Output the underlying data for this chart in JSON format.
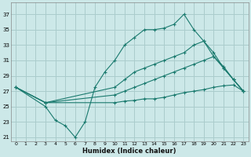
{
  "xlabel": "Humidex (Indice chaleur)",
  "bg_color": "#cce8e8",
  "grid_color": "#aacccc",
  "line_color": "#1a7a6e",
  "xlim": [
    -0.5,
    23.5
  ],
  "ylim": [
    20.5,
    38.5
  ],
  "xtick_labels": [
    "0",
    "1",
    "2",
    "3",
    "4",
    "5",
    "6",
    "7",
    "8",
    "9",
    "1011121314151617181920212223"
  ],
  "xticks": [
    0,
    1,
    2,
    3,
    4,
    5,
    6,
    7,
    8,
    9,
    10,
    11,
    12,
    13,
    14,
    15,
    16,
    17,
    18,
    19,
    20,
    21,
    22,
    23
  ],
  "yticks": [
    21,
    23,
    25,
    27,
    29,
    31,
    33,
    35,
    37
  ],
  "line_flat_x": [
    0,
    3,
    10,
    11,
    12,
    13,
    14,
    15,
    16,
    17,
    18,
    19,
    20,
    21,
    22,
    23
  ],
  "line_flat_y": [
    27.5,
    25.5,
    25.5,
    25.7,
    25.8,
    26.0,
    26.0,
    26.2,
    26.5,
    26.8,
    27.0,
    27.2,
    27.5,
    27.7,
    27.8,
    27.0
  ],
  "line_diag1_x": [
    0,
    3,
    10,
    11,
    12,
    13,
    14,
    15,
    16,
    17,
    18,
    19,
    20,
    21,
    22,
    23
  ],
  "line_diag1_y": [
    27.5,
    25.5,
    26.5,
    27.0,
    27.5,
    28.0,
    28.5,
    29.0,
    29.5,
    30.0,
    30.5,
    31.0,
    31.5,
    30.2,
    28.5,
    27.0
  ],
  "line_diag2_x": [
    0,
    3,
    10,
    11,
    12,
    13,
    14,
    15,
    16,
    17,
    18,
    19,
    20,
    21,
    22,
    23
  ],
  "line_diag2_y": [
    27.5,
    25.5,
    27.5,
    28.5,
    29.5,
    30.0,
    30.5,
    31.0,
    31.5,
    32.0,
    33.0,
    33.5,
    31.5,
    30.0,
    28.5,
    27.0
  ],
  "line_peak_x": [
    0,
    3,
    4,
    5,
    6,
    7,
    8,
    9,
    10,
    11,
    12,
    13,
    14,
    15,
    16,
    17,
    18,
    19,
    20,
    21,
    22,
    23
  ],
  "line_peak_y": [
    27.5,
    25.0,
    23.2,
    22.5,
    21.0,
    23.0,
    27.5,
    29.5,
    31.0,
    33.0,
    34.0,
    35.0,
    35.0,
    35.2,
    35.7,
    37.0,
    35.0,
    33.5,
    32.0,
    30.0,
    28.5,
    27.0
  ]
}
